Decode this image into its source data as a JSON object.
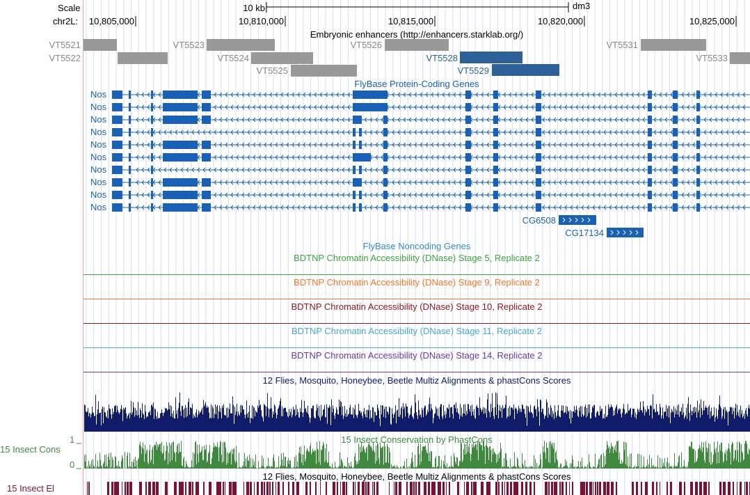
{
  "ruler": {
    "scale_label": "Scale",
    "chrom_label": "chr2L:",
    "scale_bar_label": "10 kb",
    "assembly": "dm3",
    "ticks": [
      "10,805,000",
      "10,810,000",
      "10,815,000",
      "10,820,000",
      "10,825,000"
    ]
  },
  "tracks": {
    "enhancers": {
      "title": "Embryonic enhancers (http://enhancers.starklab.org/)",
      "items": [
        {
          "label": "VT5521",
          "color": "#999999"
        },
        {
          "label": "VT5522",
          "color": "#999999"
        },
        {
          "label": "VT5523",
          "color": "#999999"
        },
        {
          "label": "VT5524",
          "color": "#999999"
        },
        {
          "label": "VT5525",
          "color": "#999999"
        },
        {
          "label": "VT5526",
          "color": "#999999"
        },
        {
          "label": "VT5528",
          "color": "#2e6197"
        },
        {
          "label": "VT5529",
          "color": "#2e6197"
        },
        {
          "label": "VT5531",
          "color": "#999999"
        },
        {
          "label": "VT5533",
          "color": "#999999"
        }
      ]
    },
    "genes": {
      "title": "FlyBase Protein-Coding Genes",
      "nos_label": "Nos",
      "nos_rows": 10,
      "others": [
        {
          "label": "CG6508",
          "strand": "+"
        },
        {
          "label": "CG17134",
          "strand": "+"
        }
      ],
      "color": "#1a60b4"
    },
    "noncoding": {
      "title": "FlyBase Noncoding Genes",
      "color": "#3a8bc8"
    },
    "dnase": [
      {
        "title": "BDTNP Chromatin Accessibility (DNase) Stage 5, Replicate 2",
        "color": "#3fa33f"
      },
      {
        "title": "BDTNP Chromatin Accessibility (DNase) Stage 9, Replicate 2",
        "color": "#ee7a2a"
      },
      {
        "title": "BDTNP Chromatin Accessibility (DNase) Stage 10, Replicate 2",
        "color": "#8c1a22"
      },
      {
        "title": "BDTNP Chromatin Accessibility (DNase) Stage 11, Replicate 2",
        "color": "#4aa8cc"
      },
      {
        "title": "BDTNP Chromatin Accessibility (DNase) Stage 14, Replicate 2",
        "color": "#6a3ba3"
      }
    ],
    "multiz": {
      "title": "12 Flies, Mosquito, Honeybee, Beetle Multiz Alignments & phastCons Scores",
      "color": "#101c6a"
    },
    "phastcons": {
      "title": "15 Insect Conservation by PhastCons",
      "side_label": "15 Insect Cons",
      "y_max": "1",
      "y_min": "0",
      "color": "#3f8a3f"
    },
    "elements": {
      "title": "12 Flies, Mosquito, Honeybee, Beetle Multiz Alignments & phastCons Scores",
      "side_label": "15 Insect El",
      "color": "#7a1232"
    }
  }
}
